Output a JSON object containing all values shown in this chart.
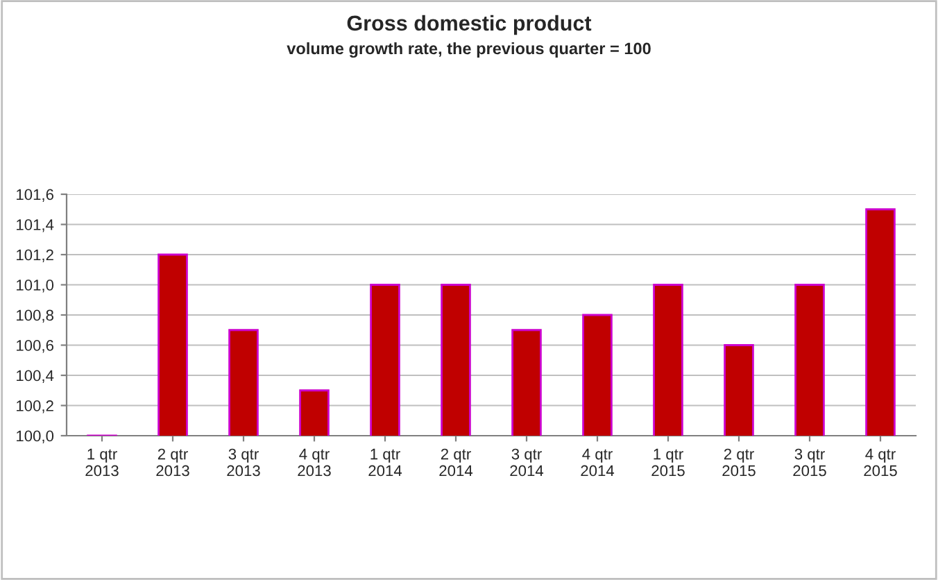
{
  "chart_data": {
    "type": "bar",
    "title": "Gross domestic product",
    "subtitle": "volume growth rate, the previous quarter = 100",
    "categories": [
      "1 qtr\n2013",
      "2 qtr\n2013",
      "3 qtr\n2013",
      "4 qtr\n2013",
      "1 qtr\n2014",
      "2 qtr\n2014",
      "3 qtr\n2014",
      "4 qtr\n2014",
      "1 qtr\n2015",
      "2 qtr\n2015",
      "3 qtr\n2015",
      "4 qtr\n2015"
    ],
    "values": [
      100.0,
      101.2,
      100.7,
      100.3,
      101.0,
      101.0,
      100.7,
      100.8,
      101.0,
      100.6,
      101.0,
      101.5
    ],
    "color": "#c00000",
    "ylim": [
      100.0,
      101.6
    ],
    "yticks": [
      {
        "value": 100.0,
        "label": "100,0"
      },
      {
        "value": 100.2,
        "label": "100,2"
      },
      {
        "value": 100.4,
        "label": "100,4"
      },
      {
        "value": 100.6,
        "label": "100,6"
      },
      {
        "value": 100.8,
        "label": "100,8"
      },
      {
        "value": 101.0,
        "label": "101,0"
      },
      {
        "value": 101.2,
        "label": "101,2"
      },
      {
        "value": 101.4,
        "label": "101,4"
      },
      {
        "value": 101.6,
        "label": "101,6"
      }
    ],
    "grid": "y",
    "legend": false
  }
}
